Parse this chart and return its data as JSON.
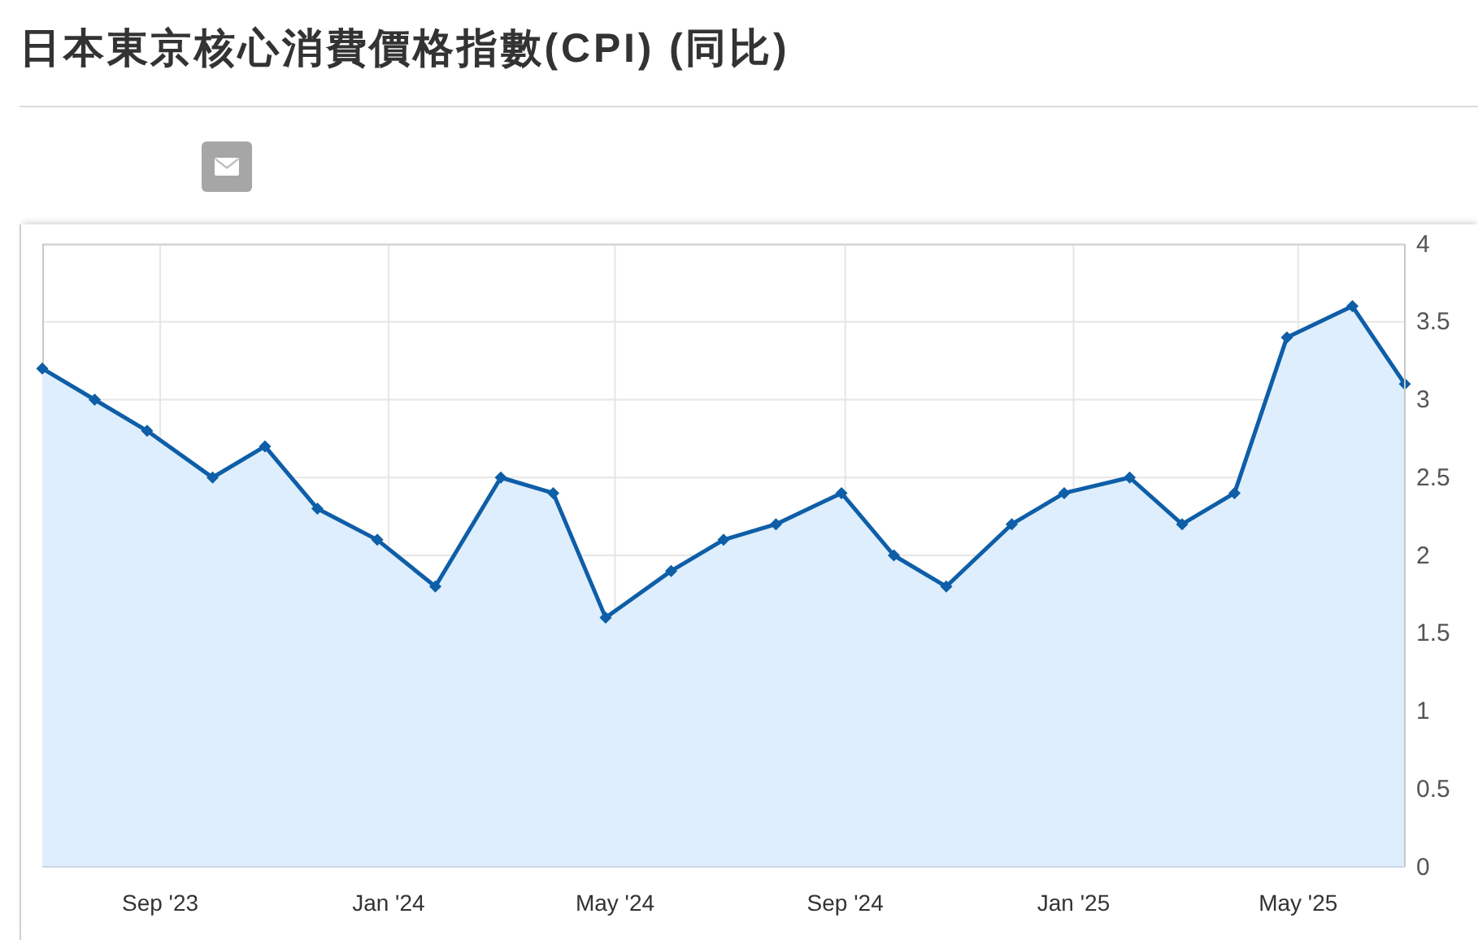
{
  "chart_data": {
    "type": "area",
    "title": "日本東京核心消費價格指數(CPI) (同比)",
    "x": [
      "2023-06-30",
      "2023-07-28",
      "2023-08-25",
      "2023-09-29",
      "2023-10-27",
      "2023-11-24",
      "2023-12-26",
      "2024-01-26",
      "2024-03-01",
      "2024-03-29",
      "2024-04-26",
      "2024-05-31",
      "2024-06-28",
      "2024-07-26",
      "2024-08-30",
      "2024-09-27",
      "2024-10-25",
      "2024-11-29",
      "2024-12-27",
      "2025-01-31",
      "2025-02-28",
      "2025-03-28",
      "2025-04-25",
      "2025-05-30",
      "2025-06-27"
    ],
    "series": [
      {
        "color": "#0e5ea8",
        "values": [
          3.2,
          3.0,
          2.8,
          2.5,
          2.7,
          2.3,
          2.1,
          1.8,
          2.5,
          2.4,
          1.6,
          1.9,
          2.1,
          2.2,
          2.4,
          2.0,
          1.8,
          2.2,
          2.4,
          2.5,
          2.2,
          2.4,
          3.4,
          3.6,
          3.1
        ]
      }
    ],
    "xlim": [
      "2023-06-30",
      "2025-06-27"
    ],
    "xticks": [
      {
        "value": "2023-09-01",
        "label": "Sep '23"
      },
      {
        "value": "2024-01-01",
        "label": "Jan '24"
      },
      {
        "value": "2024-05-01",
        "label": "May '24"
      },
      {
        "value": "2024-09-01",
        "label": "Sep '24"
      },
      {
        "value": "2025-01-01",
        "label": "Jan '25"
      },
      {
        "value": "2025-05-01",
        "label": "May '25"
      }
    ],
    "ylim": [
      0,
      4
    ],
    "yticks": [
      0,
      0.5,
      1,
      1.5,
      2,
      2.5,
      3,
      3.5,
      4
    ],
    "grid": true,
    "marker": "diamond"
  }
}
